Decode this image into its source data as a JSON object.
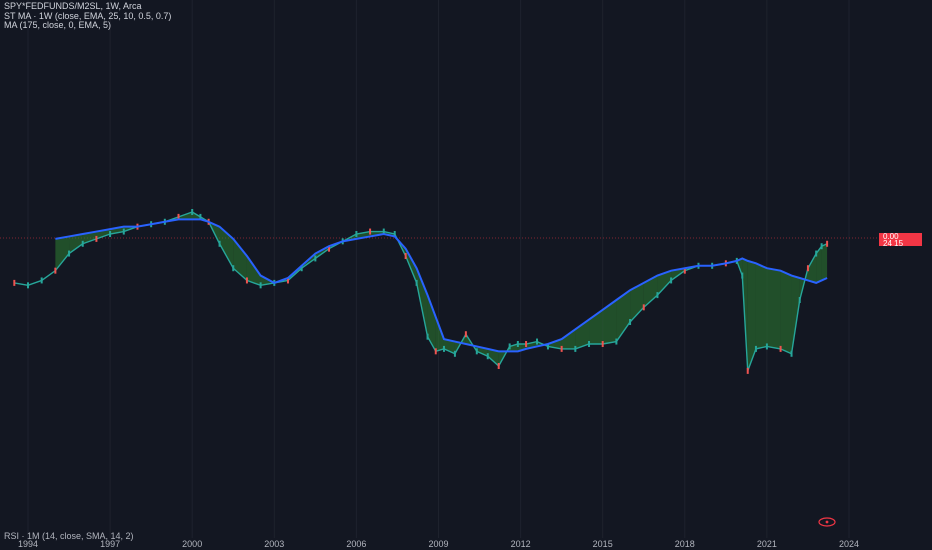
{
  "legend": {
    "symbol": "SPY*FEDFUNDS/M2SL, 1W, Arca",
    "indicator1": "ST MA · 1W (close, EMA, 25, 10, 0.5, 0.7)",
    "indicator2": "MA (175, close, 0, EMA, 5)"
  },
  "rsi_label": "RSI · 1M (14, close, SMA, 14, 2)",
  "price_badge": {
    "line1": "0.00",
    "line2": "24 15",
    "color": "#f23645"
  },
  "colors": {
    "background": "#131722",
    "ma_line": "#2962ff",
    "fill": "#2e7d32",
    "candle_up": "#26a69a",
    "candle_down": "#ef5350"
  },
  "chart_data": {
    "type": "line",
    "x": [
      1993.5,
      1994.0,
      1994.5,
      1995.0,
      1995.5,
      1996.0,
      1996.5,
      1997.0,
      1997.5,
      1998.0,
      1998.5,
      1999.0,
      1999.5,
      2000.0,
      2000.3,
      2000.6,
      2001.0,
      2001.5,
      2002.0,
      2002.5,
      2003.0,
      2003.5,
      2004.0,
      2004.5,
      2005.0,
      2005.5,
      2006.0,
      2006.5,
      2007.0,
      2007.4,
      2007.8,
      2008.2,
      2008.6,
      2008.9,
      2009.2,
      2009.6,
      2010.0,
      2010.4,
      2010.8,
      2011.2,
      2011.6,
      2011.9,
      2012.2,
      2012.6,
      2013.0,
      2013.5,
      2014.0,
      2014.5,
      2015.0,
      2015.5,
      2016.0,
      2016.5,
      2017.0,
      2017.5,
      2018.0,
      2018.5,
      2019.0,
      2019.5,
      2019.9,
      2020.1,
      2020.3,
      2020.6,
      2021.0,
      2021.5,
      2021.9,
      2022.2,
      2022.5,
      2022.8,
      2023.0,
      2023.2
    ],
    "series": [
      {
        "values": [
          0.52,
          0.51,
          0.53,
          0.57,
          0.64,
          0.68,
          0.7,
          0.72,
          0.73,
          0.75,
          0.76,
          0.77,
          0.79,
          0.81,
          0.79,
          0.77,
          0.68,
          0.58,
          0.53,
          0.51,
          0.52,
          0.53,
          0.58,
          0.62,
          0.66,
          0.69,
          0.72,
          0.73,
          0.73,
          0.72,
          0.63,
          0.52,
          0.3,
          0.24,
          0.25,
          0.23,
          0.31,
          0.24,
          0.22,
          0.18,
          0.26,
          0.27,
          0.27,
          0.28,
          0.26,
          0.25,
          0.25,
          0.27,
          0.27,
          0.28,
          0.36,
          0.42,
          0.47,
          0.53,
          0.57,
          0.59,
          0.59,
          0.6,
          0.61,
          0.55,
          0.16,
          0.25,
          0.26,
          0.25,
          0.23,
          0.45,
          0.58,
          0.64,
          0.67,
          0.68
        ]
      },
      {
        "values": [
          null,
          null,
          null,
          0.7,
          0.71,
          0.72,
          0.73,
          0.74,
          0.75,
          0.75,
          0.76,
          0.77,
          0.78,
          0.78,
          0.78,
          0.77,
          0.75,
          0.7,
          0.63,
          0.55,
          0.52,
          0.54,
          0.59,
          0.64,
          0.67,
          0.69,
          0.7,
          0.71,
          0.72,
          0.71,
          0.66,
          0.58,
          0.47,
          0.38,
          0.29,
          0.28,
          0.27,
          0.26,
          0.25,
          0.24,
          0.24,
          0.24,
          0.25,
          0.26,
          0.27,
          0.29,
          0.33,
          0.37,
          0.41,
          0.45,
          0.49,
          0.52,
          0.55,
          0.57,
          0.58,
          0.59,
          0.59,
          0.6,
          0.61,
          0.62,
          0.61,
          0.6,
          0.58,
          0.57,
          0.55,
          0.54,
          0.53,
          0.52,
          0.53,
          0.54
        ]
      }
    ],
    "xticks": [
      "1994",
      "1997",
      "2000",
      "2003",
      "2006",
      "2009",
      "2012",
      "2015",
      "2018",
      "2021",
      "2024"
    ],
    "grid": true
  }
}
